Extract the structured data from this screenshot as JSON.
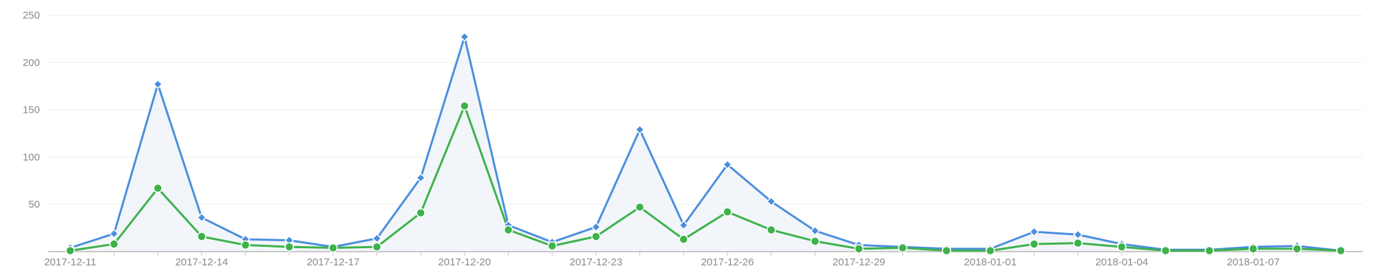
{
  "chart_data": {
    "type": "line",
    "title": "",
    "xlabel": "",
    "ylabel": "",
    "ylim": [
      0,
      250
    ],
    "yticks": [
      50,
      100,
      150,
      200,
      250
    ],
    "grid": true,
    "x": [
      "2017-12-11",
      "2017-12-12",
      "2017-12-13",
      "2017-12-14",
      "2017-12-15",
      "2017-12-16",
      "2017-12-17",
      "2017-12-18",
      "2017-12-19",
      "2017-12-20",
      "2017-12-21",
      "2017-12-22",
      "2017-12-23",
      "2017-12-24",
      "2017-12-25",
      "2017-12-26",
      "2017-12-27",
      "2017-12-28",
      "2017-12-29",
      "2017-12-30",
      "2017-12-31",
      "2018-01-01",
      "2018-01-02",
      "2018-01-03",
      "2018-01-04",
      "2018-01-05",
      "2018-01-06",
      "2018-01-07",
      "2018-01-08",
      "2018-01-09"
    ],
    "xtick_labels": [
      "2017-12-11",
      "2017-12-14",
      "2017-12-17",
      "2017-12-20",
      "2017-12-23",
      "2017-12-26",
      "2017-12-29",
      "2018-01-01",
      "2018-01-04",
      "2018-01-07"
    ],
    "series": [
      {
        "marker": "diamond",
        "color": "#4a8fdd",
        "area": true,
        "values": [
          4,
          19,
          177,
          36,
          13,
          12,
          5,
          14,
          78,
          227,
          28,
          10,
          26,
          129,
          28,
          92,
          53,
          22,
          7,
          5,
          3,
          3,
          21,
          18,
          8,
          2,
          2,
          5,
          6,
          1
        ]
      },
      {
        "marker": "circle",
        "color": "#3db24b",
        "area": false,
        "values": [
          1,
          8,
          67,
          16,
          7,
          5,
          4,
          5,
          41,
          154,
          23,
          6,
          16,
          47,
          13,
          42,
          23,
          11,
          3,
          4,
          1,
          1,
          8,
          9,
          5,
          1,
          1,
          3,
          3,
          1
        ]
      }
    ]
  }
}
